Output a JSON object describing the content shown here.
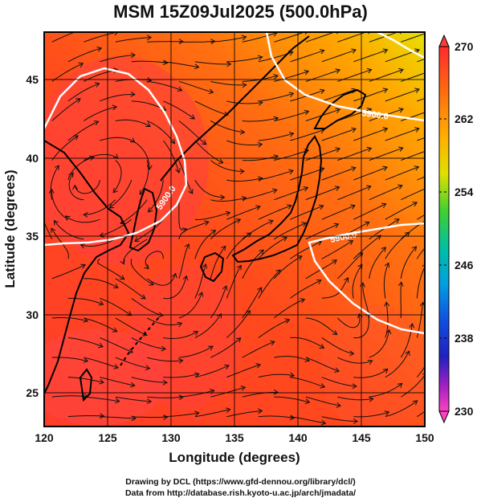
{
  "title": "MSM 15Z09Jul2025 (500.0hPa)",
  "xlabel": "Longitude (degrees)",
  "ylabel": "Latitude  (degrees)",
  "x_ticks": [
    "120",
    "125",
    "130",
    "135",
    "140",
    "145",
    "150"
  ],
  "y_ticks": [
    "25",
    "30",
    "35",
    "40",
    "45"
  ],
  "colorbar": {
    "ticks": [
      "270",
      "262",
      "254",
      "246",
      "238",
      "230"
    ],
    "min": 230,
    "max": 270
  },
  "contours": [
    {
      "label": "5900.0"
    },
    {
      "label": "5900.0"
    },
    {
      "label": "5900.0"
    }
  ],
  "credits": {
    "line1": "Drawing by DCL (https://www.gfd-dennou.org/library/dcl/)",
    "line2": "Data from http://database.rish.kyoto-u.ac.jp/arch/jmadata/"
  },
  "colors": {
    "warm": "#ff3b26",
    "mid": "#ff6a14",
    "upper": "#ffb400",
    "contour": "#ffffff"
  }
}
